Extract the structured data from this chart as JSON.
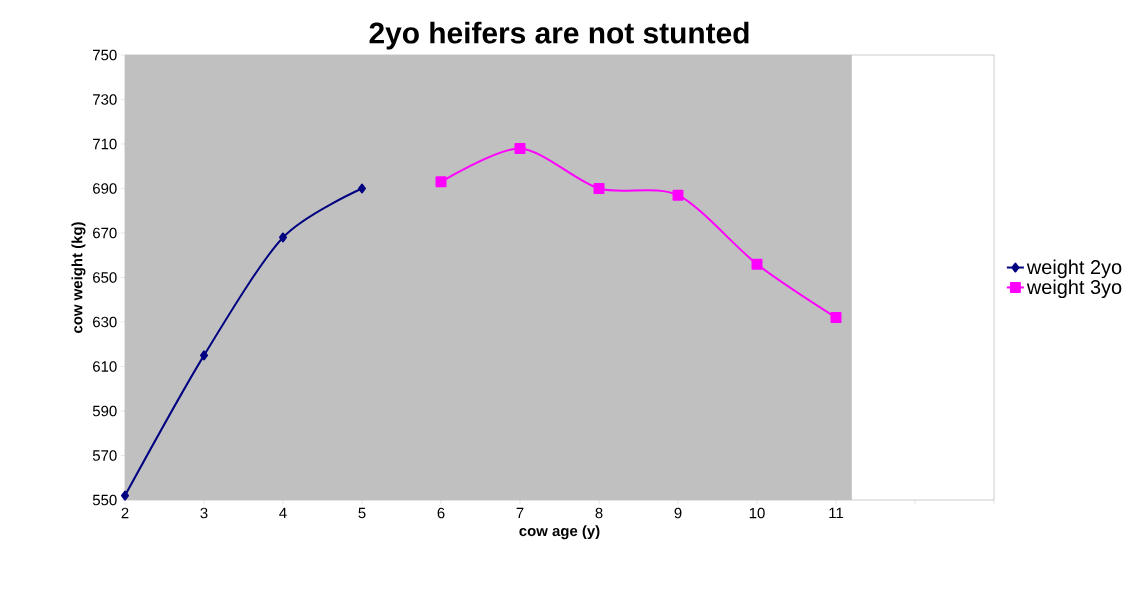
{
  "chart_data": {
    "type": "line",
    "title": "2yo heifers are not stunted",
    "xlabel": "cow age (y)",
    "ylabel": "cow weight (kg)",
    "xlim": [
      2,
      13
    ],
    "xticks": [
      2,
      3,
      4,
      5,
      6,
      7,
      8,
      9,
      10,
      11,
      {
        "value": 12,
        "label": null
      },
      {
        "value": 13,
        "label": null
      }
    ],
    "ylim": [
      550,
      750
    ],
    "yticks": [
      550,
      570,
      590,
      610,
      630,
      650,
      670,
      690,
      710,
      730,
      750
    ],
    "bands": [
      {
        "axis": "x",
        "from": 2,
        "to": 11.2,
        "color": "#c0c0c0"
      }
    ],
    "legend": "right",
    "grid": false,
    "series": [
      {
        "name": "weight 2yo",
        "color": "#000080",
        "marker": "diamond",
        "x": [
          2,
          3,
          4,
          5
        ],
        "values": [
          552,
          615,
          668,
          690
        ]
      },
      {
        "name": "weight 3yo",
        "color": "#ff00ff",
        "marker": "square",
        "x": [
          6,
          7,
          8,
          9,
          10,
          11
        ],
        "values": [
          693,
          708,
          690,
          687,
          656,
          632
        ]
      }
    ]
  }
}
